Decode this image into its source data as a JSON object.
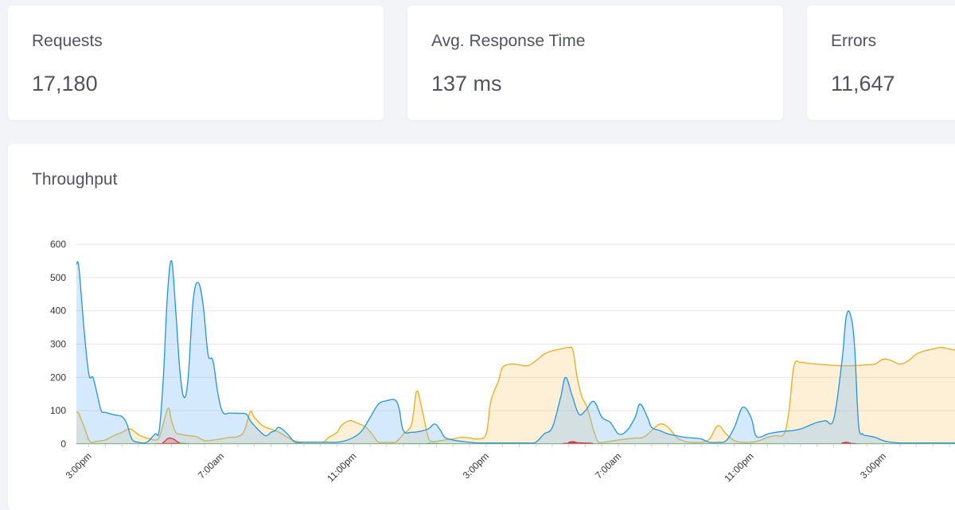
{
  "stats": {
    "requests": {
      "label": "Requests",
      "value": "17,180"
    },
    "avg_response": {
      "label": "Avg. Response Time",
      "value": "137 ms"
    },
    "errors": {
      "label": "Errors",
      "value": "11,647"
    }
  },
  "throughput": {
    "title": "Throughput"
  },
  "chart_data": {
    "type": "area",
    "title": "Throughput",
    "xlabel": "",
    "ylabel": "",
    "ylim": [
      0,
      600
    ],
    "yticks": [
      0,
      100,
      200,
      300,
      400,
      500,
      600
    ],
    "x_tick_labels": [
      {
        "label": "3:00pm",
        "x": 0
      },
      {
        "label": "7:00am",
        "x": 16
      },
      {
        "label": "11:00pm",
        "x": 32
      },
      {
        "label": "3:00pm",
        "x": 48
      },
      {
        "label": "7:00am",
        "x": 64
      },
      {
        "label": "11:00pm",
        "x": 80
      },
      {
        "label": "3:00pm",
        "x": 96
      }
    ],
    "x_minor_ticks_every": 2,
    "xlim": [
      -1.6,
      106
    ],
    "grid": true,
    "series": [
      {
        "name": "",
        "color": "#e8ac1c",
        "fill": "rgba(251,200,110,0.28)",
        "points": [
          [
            -1.5,
            95
          ],
          [
            -1.2,
            90
          ],
          [
            -0.4,
            40
          ],
          [
            0,
            12
          ],
          [
            0.4,
            5
          ],
          [
            1,
            8
          ],
          [
            2,
            12
          ],
          [
            3,
            25
          ],
          [
            4,
            35
          ],
          [
            5,
            45
          ],
          [
            6,
            28
          ],
          [
            7,
            18
          ],
          [
            8,
            12
          ],
          [
            8.5,
            20
          ],
          [
            9,
            60
          ],
          [
            9.6,
            108
          ],
          [
            10,
            70
          ],
          [
            10.5,
            35
          ],
          [
            11,
            30
          ],
          [
            12,
            25
          ],
          [
            13,
            22
          ],
          [
            14,
            10
          ],
          [
            15,
            12
          ],
          [
            16,
            15
          ],
          [
            17,
            20
          ],
          [
            18,
            22
          ],
          [
            18.8,
            40
          ],
          [
            19.5,
            97
          ],
          [
            20,
            80
          ],
          [
            21,
            55
          ],
          [
            22,
            45
          ],
          [
            23,
            35
          ],
          [
            24,
            20
          ],
          [
            25,
            8
          ],
          [
            26,
            5
          ],
          [
            27,
            5
          ],
          [
            28,
            5
          ],
          [
            28.5,
            8
          ],
          [
            29,
            20
          ],
          [
            30,
            35
          ],
          [
            30.5,
            55
          ],
          [
            31.5,
            70
          ],
          [
            32.5,
            62
          ],
          [
            33.5,
            50
          ],
          [
            34.5,
            20
          ],
          [
            35,
            5
          ],
          [
            36,
            5
          ],
          [
            37,
            5
          ],
          [
            37.5,
            15
          ],
          [
            38,
            30
          ],
          [
            39,
            60
          ],
          [
            39.6,
            158
          ],
          [
            40.2,
            110
          ],
          [
            41,
            20
          ],
          [
            41.5,
            8
          ],
          [
            42,
            8
          ],
          [
            43,
            12
          ],
          [
            44,
            15
          ],
          [
            45,
            20
          ],
          [
            46,
            18
          ],
          [
            47,
            15
          ],
          [
            48,
            30
          ],
          [
            48.5,
            120
          ],
          [
            49,
            160
          ],
          [
            49.5,
            190
          ],
          [
            50,
            230
          ],
          [
            51,
            240
          ],
          [
            52,
            238
          ],
          [
            53,
            235
          ],
          [
            54,
            250
          ],
          [
            55,
            270
          ],
          [
            56,
            280
          ],
          [
            57,
            285
          ],
          [
            58,
            290
          ],
          [
            58.5,
            280
          ],
          [
            59,
            200
          ],
          [
            59.6,
            140
          ],
          [
            60.2,
            110
          ],
          [
            61,
            40
          ],
          [
            61.5,
            8
          ],
          [
            62,
            5
          ],
          [
            63,
            8
          ],
          [
            64,
            12
          ],
          [
            65,
            15
          ],
          [
            66,
            18
          ],
          [
            67,
            20
          ],
          [
            68,
            40
          ],
          [
            69,
            60
          ],
          [
            70,
            50
          ],
          [
            71,
            20
          ],
          [
            72,
            8
          ],
          [
            73,
            5
          ],
          [
            74,
            5
          ],
          [
            75,
            15
          ],
          [
            76,
            55
          ],
          [
            77,
            30
          ],
          [
            78,
            10
          ],
          [
            79,
            5
          ],
          [
            80,
            5
          ],
          [
            81,
            10
          ],
          [
            82,
            20
          ],
          [
            83,
            25
          ],
          [
            84,
            30
          ],
          [
            84.6,
            100
          ],
          [
            85.2,
            235
          ],
          [
            86,
            245
          ],
          [
            87,
            242
          ],
          [
            88,
            240
          ],
          [
            89,
            238
          ],
          [
            90,
            236
          ],
          [
            91,
            235
          ],
          [
            92,
            235
          ],
          [
            93,
            236
          ],
          [
            94,
            238
          ],
          [
            95,
            240
          ],
          [
            96,
            255
          ],
          [
            97,
            250
          ],
          [
            98,
            240
          ],
          [
            99,
            250
          ],
          [
            100,
            270
          ],
          [
            101,
            280
          ],
          [
            102,
            285
          ],
          [
            103,
            290
          ],
          [
            104,
            285
          ],
          [
            104.8,
            280
          ],
          [
            105.5,
            260
          ],
          [
            106,
            245
          ]
        ]
      },
      {
        "name": "",
        "color": "#2393e0",
        "fill": "rgba(126,188,245,0.33)",
        "points": [
          [
            -1.5,
            540
          ],
          [
            -1.2,
            530
          ],
          [
            -0.6,
            350
          ],
          [
            0,
            210
          ],
          [
            0.5,
            200
          ],
          [
            1,
            150
          ],
          [
            1.5,
            100
          ],
          [
            2,
            95
          ],
          [
            3,
            88
          ],
          [
            4,
            82
          ],
          [
            4.6,
            60
          ],
          [
            5.2,
            15
          ],
          [
            6,
            5
          ],
          [
            7,
            5
          ],
          [
            8,
            30
          ],
          [
            8.5,
            40
          ],
          [
            9,
            200
          ],
          [
            9.5,
            450
          ],
          [
            10,
            550
          ],
          [
            10.5,
            400
          ],
          [
            11,
            220
          ],
          [
            11.5,
            140
          ],
          [
            12,
            200
          ],
          [
            12.6,
            430
          ],
          [
            13.2,
            485
          ],
          [
            13.8,
            420
          ],
          [
            14.4,
            270
          ],
          [
            15,
            250
          ],
          [
            15.6,
            150
          ],
          [
            16.2,
            95
          ],
          [
            17,
            93
          ],
          [
            18,
            92
          ],
          [
            19,
            90
          ],
          [
            19.5,
            70
          ],
          [
            20,
            55
          ],
          [
            21,
            30
          ],
          [
            21.5,
            25
          ],
          [
            22,
            35
          ],
          [
            22.5,
            40
          ],
          [
            23,
            50
          ],
          [
            24,
            30
          ],
          [
            24.5,
            15
          ],
          [
            25,
            5
          ],
          [
            26,
            5
          ],
          [
            27,
            5
          ],
          [
            28,
            5
          ],
          [
            29,
            5
          ],
          [
            30,
            5
          ],
          [
            31,
            10
          ],
          [
            32,
            20
          ],
          [
            33,
            40
          ],
          [
            34,
            80
          ],
          [
            35,
            120
          ],
          [
            36,
            130
          ],
          [
            37,
            132
          ],
          [
            37.5,
            105
          ],
          [
            38,
            40
          ],
          [
            39,
            35
          ],
          [
            40,
            38
          ],
          [
            41,
            45
          ],
          [
            41.8,
            60
          ],
          [
            42.5,
            40
          ],
          [
            43,
            20
          ],
          [
            44,
            12
          ],
          [
            45,
            8
          ],
          [
            46,
            5
          ],
          [
            47,
            3
          ],
          [
            48,
            3
          ],
          [
            49,
            3
          ],
          [
            50,
            3
          ],
          [
            51,
            3
          ],
          [
            52,
            3
          ],
          [
            53,
            3
          ],
          [
            54,
            5
          ],
          [
            55,
            30
          ],
          [
            56,
            50
          ],
          [
            57,
            140
          ],
          [
            57.6,
            200
          ],
          [
            58.4,
            145
          ],
          [
            59.2,
            90
          ],
          [
            60,
            100
          ],
          [
            61,
            128
          ],
          [
            62,
            80
          ],
          [
            63,
            65
          ],
          [
            64,
            30
          ],
          [
            65,
            40
          ],
          [
            66,
            80
          ],
          [
            66.6,
            120
          ],
          [
            67.5,
            80
          ],
          [
            68,
            50
          ],
          [
            69,
            40
          ],
          [
            70,
            30
          ],
          [
            71,
            25
          ],
          [
            72,
            20
          ],
          [
            73,
            18
          ],
          [
            74,
            15
          ],
          [
            75,
            5
          ],
          [
            76,
            5
          ],
          [
            77,
            10
          ],
          [
            78,
            50
          ],
          [
            79,
            110
          ],
          [
            80,
            80
          ],
          [
            80.5,
            30
          ],
          [
            81,
            20
          ],
          [
            82,
            30
          ],
          [
            83,
            35
          ],
          [
            84,
            38
          ],
          [
            85,
            40
          ],
          [
            86,
            45
          ],
          [
            87,
            55
          ],
          [
            88,
            65
          ],
          [
            89,
            70
          ],
          [
            90,
            75
          ],
          [
            91,
            250
          ],
          [
            91.5,
            380
          ],
          [
            92,
            390
          ],
          [
            92.5,
            300
          ],
          [
            93,
            60
          ],
          [
            93.5,
            30
          ],
          [
            94,
            25
          ],
          [
            95,
            20
          ],
          [
            96,
            10
          ],
          [
            97,
            5
          ],
          [
            98,
            3
          ],
          [
            99,
            3
          ],
          [
            100,
            3
          ],
          [
            101,
            3
          ],
          [
            102,
            3
          ],
          [
            103,
            3
          ],
          [
            104,
            3
          ],
          [
            105,
            3
          ],
          [
            106,
            3
          ]
        ]
      },
      {
        "name": "",
        "color": "#e0315a",
        "fill": "rgba(240,90,110,0.35)",
        "points": [
          [
            -1.5,
            0
          ],
          [
            8,
            0
          ],
          [
            9,
            5
          ],
          [
            9.6,
            17
          ],
          [
            10.2,
            15
          ],
          [
            11,
            3
          ],
          [
            12,
            0
          ],
          [
            57,
            0
          ],
          [
            58,
            5
          ],
          [
            58.5,
            7
          ],
          [
            59,
            4
          ],
          [
            60,
            0
          ],
          [
            90,
            0
          ],
          [
            91,
            3
          ],
          [
            91.5,
            5
          ],
          [
            92,
            3
          ],
          [
            93,
            0
          ],
          [
            106,
            0
          ]
        ]
      },
      {
        "name": "",
        "color": "#5cb85c",
        "fill": "rgba(92,184,92,0.25)",
        "points": [
          [
            -1.5,
            0
          ],
          [
            10,
            0
          ],
          [
            11,
            2
          ],
          [
            12,
            1
          ],
          [
            13,
            0
          ],
          [
            40,
            0
          ],
          [
            41,
            2
          ],
          [
            42,
            1
          ],
          [
            43,
            0
          ],
          [
            106,
            0
          ]
        ]
      }
    ]
  }
}
